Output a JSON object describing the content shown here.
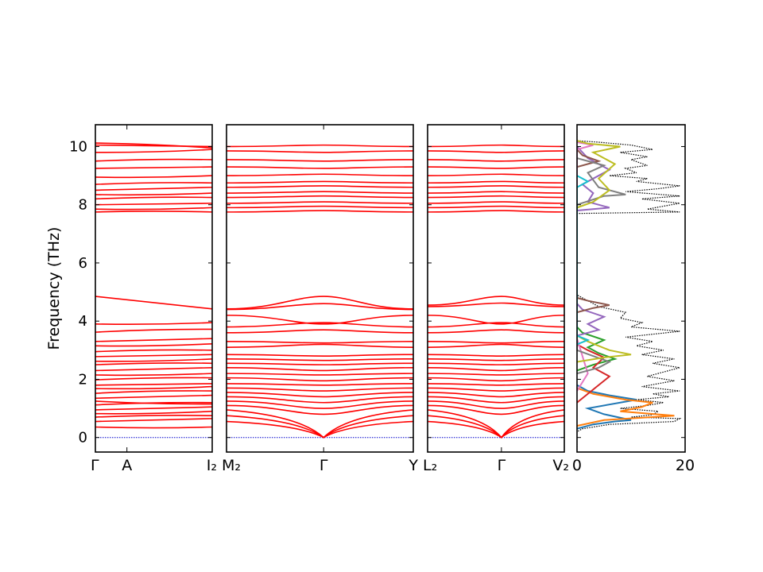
{
  "chart_data": [
    {
      "type": "line",
      "panel": "band-structure-1",
      "ylabel": "Frequency (THz)",
      "ylim": [
        -0.5,
        10.75
      ],
      "y_ticks": [
        0,
        2,
        4,
        6,
        8,
        10
      ],
      "x_tick_labels": [
        "Γ",
        "A",
        "I₂"
      ],
      "x_range": [
        0,
        1
      ],
      "x_tick_positions": [
        0,
        0.27,
        1
      ],
      "acoustic_color": "#0000cc",
      "line_color": "#ff0000",
      "branches": [
        [
          0.36,
          0.36
        ],
        [
          0.55,
          0.65
        ],
        [
          0.7,
          0.75
        ],
        [
          0.82,
          0.9
        ],
        [
          0.95,
          1.05
        ],
        [
          1.12,
          1.2
        ],
        [
          1.25,
          1.15
        ],
        [
          1.35,
          1.45
        ],
        [
          1.52,
          1.6
        ],
        [
          1.68,
          1.75
        ],
        [
          1.8,
          1.85
        ],
        [
          1.98,
          2.05
        ],
        [
          2.15,
          2.2
        ],
        [
          2.3,
          2.4
        ],
        [
          2.5,
          2.55
        ],
        [
          2.62,
          2.7
        ],
        [
          2.78,
          2.85
        ],
        [
          2.95,
          3.0
        ],
        [
          3.15,
          3.22
        ],
        [
          3.3,
          3.4
        ],
        [
          3.62,
          3.72
        ],
        [
          3.9,
          3.95
        ],
        [
          4.85,
          4.42
        ],
        [
          7.75,
          7.75
        ],
        [
          7.85,
          7.9
        ],
        [
          8.0,
          8.05
        ],
        [
          8.2,
          8.25
        ],
        [
          8.35,
          8.4
        ],
        [
          8.5,
          8.6
        ],
        [
          8.7,
          8.75
        ],
        [
          8.95,
          9.0
        ],
        [
          9.25,
          9.3
        ],
        [
          9.5,
          9.55
        ],
        [
          9.8,
          9.9
        ],
        [
          10.05,
          10.0
        ],
        [
          10.12,
          9.95
        ]
      ]
    },
    {
      "type": "line",
      "panel": "band-structure-2",
      "x_tick_labels": [
        "M₂",
        "Γ",
        "Y"
      ],
      "x_range": [
        0,
        1
      ],
      "x_tick_positions": [
        0,
        0.52,
        1
      ],
      "branches": [
        [
          0.55,
          0.0,
          0.55
        ],
        [
          0.75,
          0.0,
          0.75
        ],
        [
          0.95,
          0.0,
          0.95
        ],
        [
          1.1,
          0.8,
          1.1
        ],
        [
          1.25,
          1.0,
          1.25
        ],
        [
          1.4,
          1.2,
          1.4
        ],
        [
          1.55,
          1.4,
          1.55
        ],
        [
          1.7,
          1.6,
          1.7
        ],
        [
          1.85,
          1.8,
          1.85
        ],
        [
          2.05,
          1.95,
          2.05
        ],
        [
          2.2,
          2.15,
          2.2
        ],
        [
          2.4,
          2.3,
          2.4
        ],
        [
          2.55,
          2.5,
          2.55
        ],
        [
          2.7,
          2.65,
          2.7
        ],
        [
          2.85,
          2.8,
          2.85
        ],
        [
          3.1,
          3.2,
          3.1
        ],
        [
          3.3,
          3.25,
          3.3
        ],
        [
          3.6,
          3.7,
          3.6
        ],
        [
          3.8,
          3.95,
          3.8
        ],
        [
          4.2,
          3.9,
          4.2
        ],
        [
          4.4,
          4.6,
          4.4
        ],
        [
          4.42,
          4.85,
          4.42
        ],
        [
          7.75,
          7.8,
          7.75
        ],
        [
          7.9,
          7.95,
          7.9
        ],
        [
          8.05,
          8.1,
          8.05
        ],
        [
          8.25,
          8.3,
          8.25
        ],
        [
          8.4,
          8.45,
          8.4
        ],
        [
          8.6,
          8.65,
          8.6
        ],
        [
          8.75,
          8.8,
          8.75
        ],
        [
          9.0,
          9.05,
          9.0
        ],
        [
          9.3,
          9.25,
          9.3
        ],
        [
          9.55,
          9.5,
          9.55
        ],
        [
          9.85,
          9.8,
          9.85
        ],
        [
          10.0,
          10.05,
          10.0
        ]
      ]
    },
    {
      "type": "line",
      "panel": "band-structure-3",
      "x_tick_labels": [
        "L₂",
        "Γ",
        "V₂"
      ],
      "x_range": [
        0,
        1
      ],
      "x_tick_positions": [
        0,
        0.54,
        1
      ],
      "branches": [
        [
          0.55,
          0.0,
          0.55
        ],
        [
          0.75,
          0.0,
          0.75
        ],
        [
          0.95,
          0.0,
          0.95
        ],
        [
          1.1,
          0.8,
          1.1
        ],
        [
          1.25,
          1.0,
          1.25
        ],
        [
          1.4,
          1.2,
          1.4
        ],
        [
          1.55,
          1.4,
          1.55
        ],
        [
          1.7,
          1.6,
          1.7
        ],
        [
          1.85,
          1.8,
          1.85
        ],
        [
          2.05,
          1.95,
          2.05
        ],
        [
          2.2,
          2.15,
          2.2
        ],
        [
          2.4,
          2.3,
          2.4
        ],
        [
          2.55,
          2.5,
          2.55
        ],
        [
          2.7,
          2.65,
          2.7
        ],
        [
          2.85,
          2.8,
          2.85
        ],
        [
          3.1,
          3.2,
          3.1
        ],
        [
          3.3,
          3.25,
          3.3
        ],
        [
          3.6,
          3.7,
          3.6
        ],
        [
          3.8,
          3.95,
          3.8
        ],
        [
          4.2,
          3.9,
          4.2
        ],
        [
          4.5,
          4.62,
          4.5
        ],
        [
          4.55,
          4.85,
          4.55
        ],
        [
          7.75,
          7.8,
          7.75
        ],
        [
          7.9,
          7.95,
          7.9
        ],
        [
          8.05,
          8.1,
          8.05
        ],
        [
          8.25,
          8.3,
          8.25
        ],
        [
          8.4,
          8.45,
          8.4
        ],
        [
          8.6,
          8.65,
          8.6
        ],
        [
          8.75,
          8.8,
          8.75
        ],
        [
          9.0,
          9.05,
          9.0
        ],
        [
          9.3,
          9.25,
          9.3
        ],
        [
          9.55,
          9.5,
          9.55
        ],
        [
          9.85,
          9.8,
          9.85
        ],
        [
          10.0,
          10.05,
          10.0
        ]
      ]
    },
    {
      "type": "line",
      "panel": "density-of-states",
      "xlim": [
        0,
        20
      ],
      "x_ticks": [
        0,
        20
      ],
      "x_tick_labels": [
        "0",
        "20"
      ],
      "total_dos": {
        "color": "#000000",
        "style": "dotted",
        "points": [
          [
            0,
            -0.5
          ],
          [
            0,
            0.2
          ],
          [
            1,
            0.3
          ],
          [
            6,
            0.45
          ],
          [
            12,
            0.5
          ],
          [
            18,
            0.55
          ],
          [
            19,
            0.65
          ],
          [
            10,
            0.7
          ],
          [
            14,
            0.78
          ],
          [
            15,
            0.9
          ],
          [
            8,
            1.0
          ],
          [
            13,
            1.1
          ],
          [
            16,
            1.2
          ],
          [
            11,
            1.3
          ],
          [
            17,
            1.4
          ],
          [
            14,
            1.5
          ],
          [
            19,
            1.6
          ],
          [
            12,
            1.75
          ],
          [
            15,
            1.85
          ],
          [
            18,
            1.95
          ],
          [
            13,
            2.1
          ],
          [
            16,
            2.25
          ],
          [
            19,
            2.4
          ],
          [
            14,
            2.55
          ],
          [
            18,
            2.7
          ],
          [
            12,
            2.85
          ],
          [
            16,
            3.0
          ],
          [
            11,
            3.15
          ],
          [
            14,
            3.3
          ],
          [
            9,
            3.45
          ],
          [
            19,
            3.65
          ],
          [
            10,
            3.8
          ],
          [
            12,
            3.95
          ],
          [
            8,
            4.1
          ],
          [
            9,
            4.3
          ],
          [
            4,
            4.5
          ],
          [
            2,
            4.7
          ],
          [
            0.5,
            4.85
          ],
          [
            0,
            4.9
          ],
          [
            0,
            7.7
          ],
          [
            19,
            7.75
          ],
          [
            13,
            7.85
          ],
          [
            19,
            8.05
          ],
          [
            12,
            8.2
          ],
          [
            19,
            8.3
          ],
          [
            9,
            8.45
          ],
          [
            15,
            8.55
          ],
          [
            19,
            8.65
          ],
          [
            11,
            8.8
          ],
          [
            13,
            8.9
          ],
          [
            6,
            9.0
          ],
          [
            11,
            9.1
          ],
          [
            9,
            9.25
          ],
          [
            13,
            9.35
          ],
          [
            10,
            9.55
          ],
          [
            13,
            9.65
          ],
          [
            8,
            9.8
          ],
          [
            14,
            9.9
          ],
          [
            10,
            10.05
          ],
          [
            4,
            10.15
          ],
          [
            0,
            10.2
          ],
          [
            0,
            10.75
          ]
        ]
      },
      "projected_dos": [
        {
          "color": "#1f77b4",
          "points": [
            [
              0,
              0.3
            ],
            [
              3,
              0.45
            ],
            [
              7,
              0.55
            ],
            [
              10,
              0.6
            ],
            [
              5,
              0.8
            ],
            [
              2,
              1.0
            ],
            [
              11,
              1.3
            ],
            [
              6,
              1.45
            ],
            [
              2,
              1.6
            ],
            [
              0,
              1.8
            ]
          ]
        },
        {
          "color": "#ff7f0e",
          "points": [
            [
              0,
              0.4
            ],
            [
              5,
              0.6
            ],
            [
              18,
              0.75
            ],
            [
              8,
              0.9
            ],
            [
              12,
              1.05
            ],
            [
              14,
              1.2
            ],
            [
              9,
              1.3
            ],
            [
              3,
              1.5
            ],
            [
              0,
              1.7
            ]
          ]
        },
        {
          "color": "#2ca02c",
          "points": [
            [
              0,
              2.3
            ],
            [
              3,
              2.5
            ],
            [
              7,
              2.7
            ],
            [
              4,
              2.9
            ],
            [
              2,
              3.1
            ],
            [
              5,
              3.35
            ],
            [
              1,
              3.6
            ],
            [
              0,
              3.8
            ]
          ]
        },
        {
          "color": "#d62728",
          "points": [
            [
              0,
              1.2
            ],
            [
              2,
              1.5
            ],
            [
              4,
              1.8
            ],
            [
              6,
              2.1
            ],
            [
              3,
              2.4
            ],
            [
              5,
              2.75
            ],
            [
              2,
              3.0
            ],
            [
              0,
              3.2
            ]
          ]
        },
        {
          "color": "#9467bd",
          "points": [
            [
              0,
              3.5
            ],
            [
              4,
              3.7
            ],
            [
              2,
              3.9
            ],
            [
              5,
              4.15
            ],
            [
              1,
              4.4
            ],
            [
              0,
              4.6
            ],
            [
              0,
              7.8
            ],
            [
              6,
              7.9
            ],
            [
              2,
              8.1
            ],
            [
              3,
              8.4
            ],
            [
              1,
              8.7
            ],
            [
              6,
              9.2
            ],
            [
              2,
              9.6
            ],
            [
              0,
              10.0
            ]
          ]
        },
        {
          "color": "#8c564b",
          "points": [
            [
              0,
              4.3
            ],
            [
              3,
              4.45
            ],
            [
              6,
              4.55
            ],
            [
              2,
              4.7
            ],
            [
              0,
              4.8
            ],
            [
              0,
              9.3
            ],
            [
              4,
              9.5
            ],
            [
              1,
              9.7
            ],
            [
              0,
              9.9
            ]
          ]
        },
        {
          "color": "#e377c2",
          "points": [
            [
              0,
              1.6
            ],
            [
              2,
              2.2
            ],
            [
              1,
              2.8
            ],
            [
              0,
              3.4
            ],
            [
              0,
              9.9
            ],
            [
              3,
              10.05
            ],
            [
              0,
              10.15
            ]
          ]
        },
        {
          "color": "#7f7f7f",
          "points": [
            [
              0,
              2.2
            ],
            [
              4,
              2.4
            ],
            [
              6,
              2.6
            ],
            [
              3,
              2.8
            ],
            [
              0,
              3.0
            ],
            [
              0,
              8.0
            ],
            [
              5,
              8.3
            ],
            [
              9,
              8.35
            ],
            [
              4,
              8.6
            ],
            [
              2,
              9.1
            ],
            [
              5,
              9.35
            ],
            [
              0,
              9.6
            ]
          ]
        },
        {
          "color": "#bcbd22",
          "points": [
            [
              0,
              2.6
            ],
            [
              5,
              2.75
            ],
            [
              10,
              2.85
            ],
            [
              6,
              3.0
            ],
            [
              2,
              3.3
            ],
            [
              0,
              3.5
            ],
            [
              0,
              7.9
            ],
            [
              3,
              8.1
            ],
            [
              6,
              8.5
            ],
            [
              4,
              8.9
            ],
            [
              7,
              9.4
            ],
            [
              3,
              9.8
            ],
            [
              8,
              10.0
            ],
            [
              2,
              10.1
            ],
            [
              0,
              10.2
            ]
          ]
        },
        {
          "color": "#17becf",
          "points": [
            [
              0,
              3.2
            ],
            [
              2,
              3.35
            ],
            [
              0,
              3.5
            ],
            [
              0,
              8.6
            ],
            [
              2,
              8.8
            ],
            [
              0,
              9.0
            ]
          ]
        }
      ]
    }
  ]
}
